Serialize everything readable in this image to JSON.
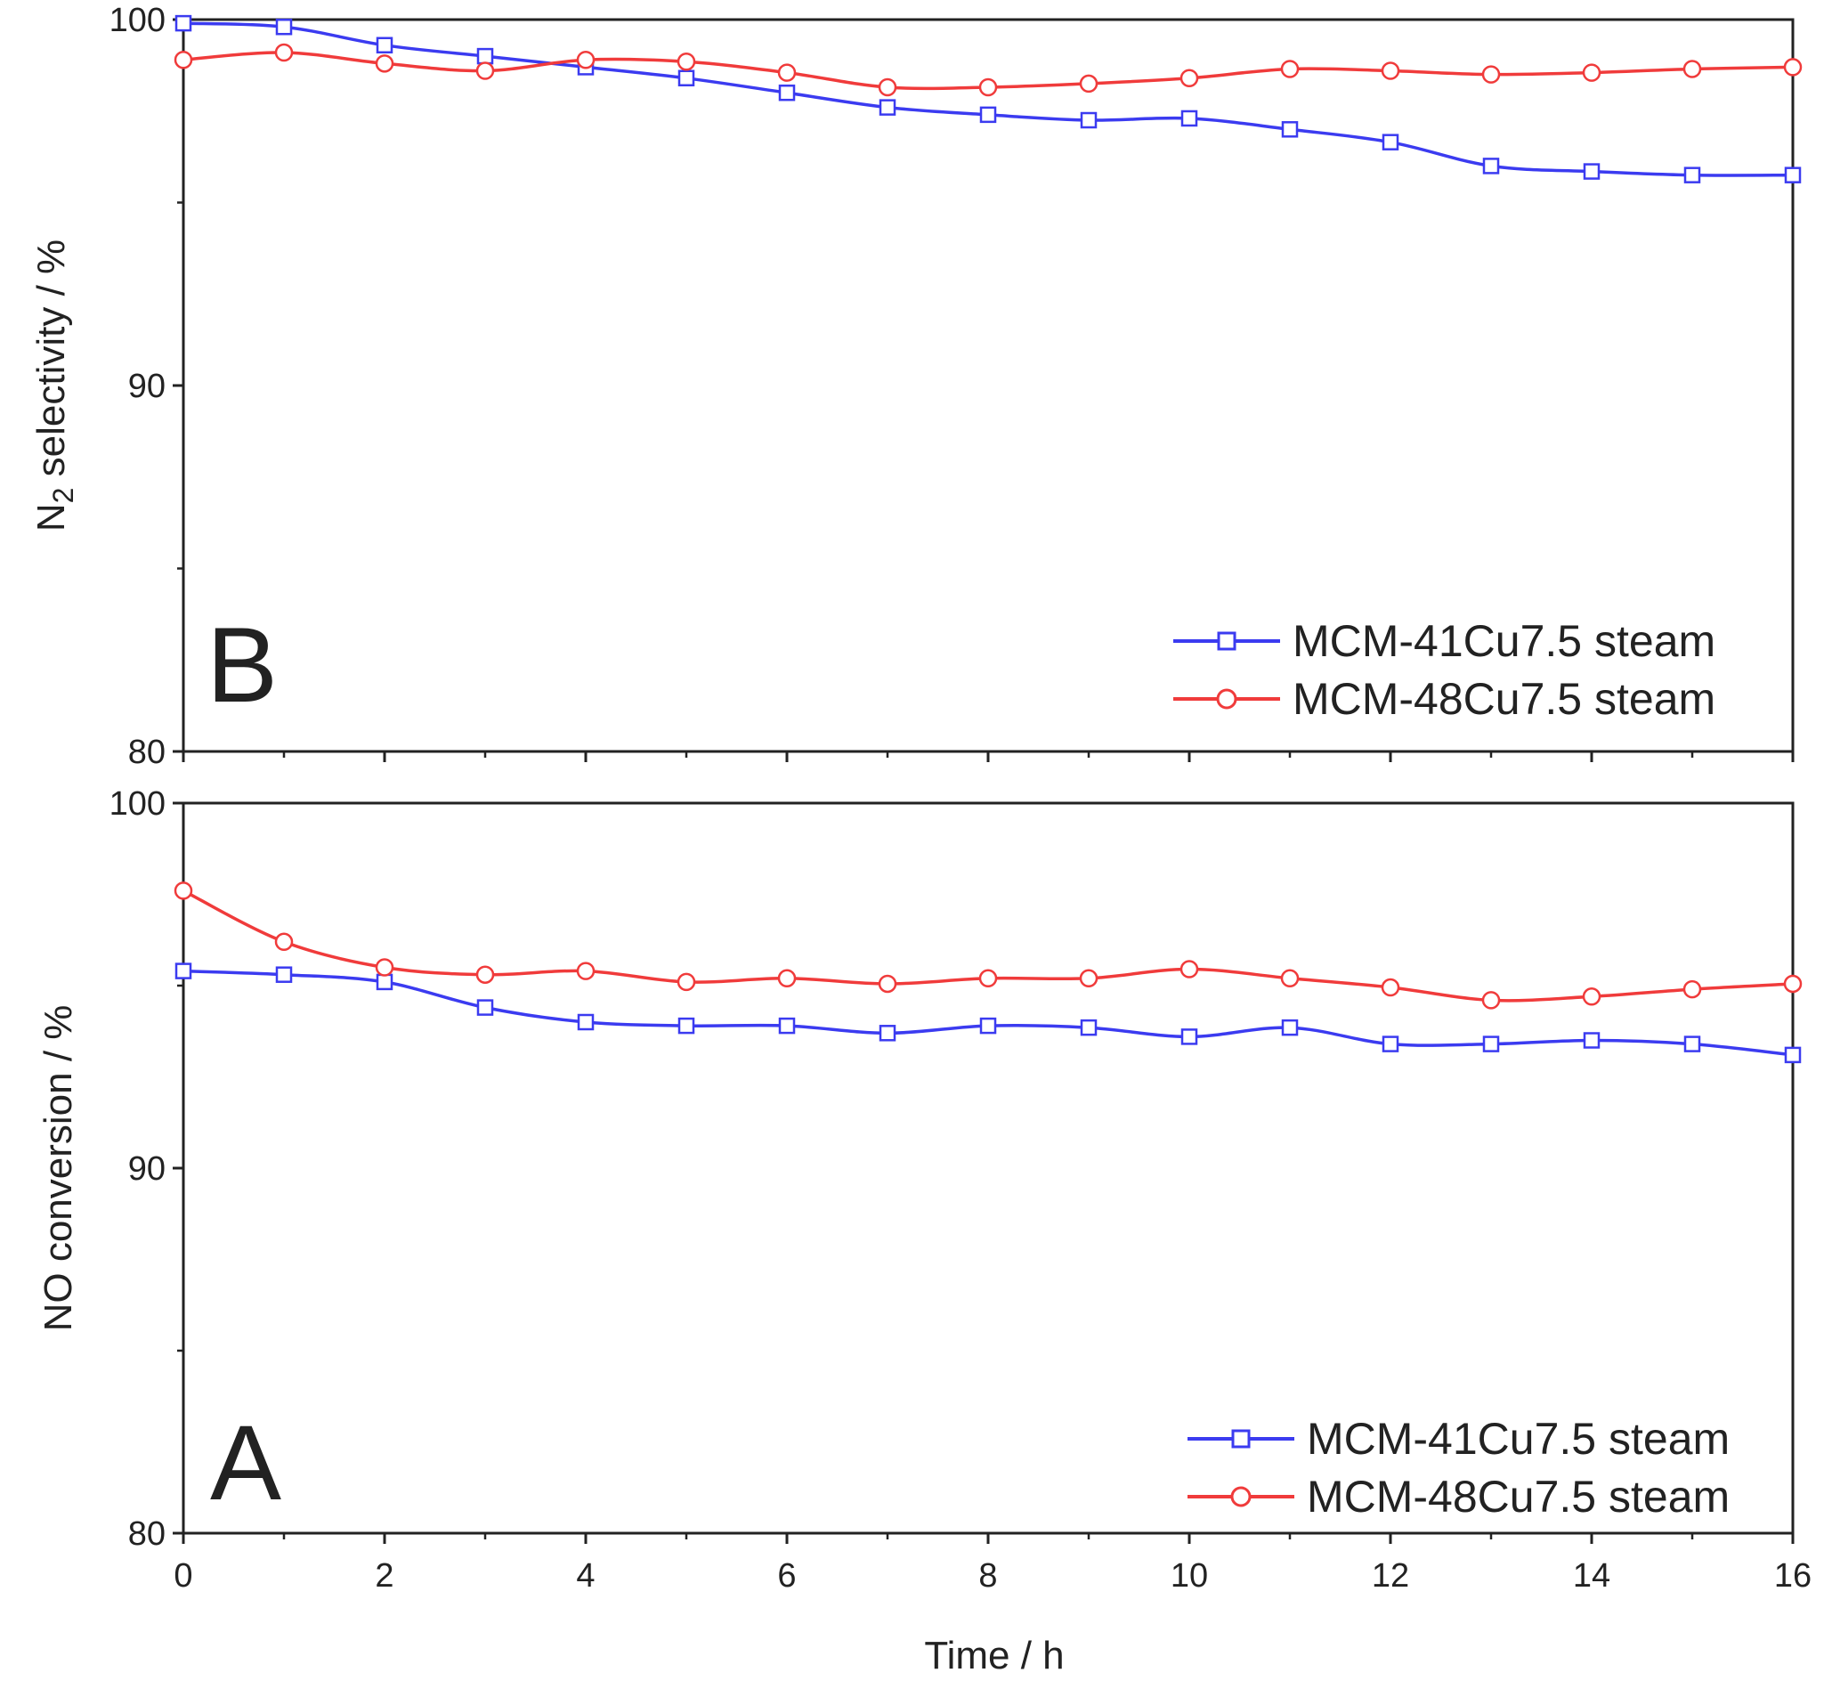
{
  "chart_data": [
    {
      "type": "line",
      "panel_label": "B",
      "ylabel_main": "N",
      "ylabel_sub": "2",
      "ylabel_rest": " selectivity / %",
      "ylim": [
        80,
        100
      ],
      "yticks": [
        "80",
        "90",
        "100"
      ],
      "xlim": [
        0,
        16
      ],
      "legend_position": "lower-right",
      "x": [
        0,
        1,
        2,
        3,
        4,
        5,
        6,
        7,
        8,
        9,
        10,
        11,
        12,
        13,
        14,
        15,
        16
      ],
      "series": [
        {
          "name": "MCM-41Cu7.5 steam",
          "color": "#3b3bf0",
          "marker": "square",
          "values": [
            99.9,
            99.8,
            99.3,
            99.0,
            98.7,
            98.4,
            98.0,
            97.6,
            97.4,
            97.25,
            97.3,
            97.0,
            96.65,
            96.0,
            95.85,
            95.75,
            95.75
          ]
        },
        {
          "name": "MCM-48Cu7.5 steam",
          "color": "#f03b3b",
          "marker": "circle",
          "values": [
            98.9,
            99.1,
            98.8,
            98.6,
            98.9,
            98.85,
            98.55,
            98.15,
            98.15,
            98.25,
            98.4,
            98.65,
            98.6,
            98.5,
            98.55,
            98.65,
            98.7
          ]
        }
      ]
    },
    {
      "type": "line",
      "panel_label": "A",
      "ylabel": "NO conversion / %",
      "xlabel": "Time / h",
      "ylim": [
        80,
        100
      ],
      "yticks": [
        "80",
        "90",
        "100"
      ],
      "xlim": [
        0,
        16
      ],
      "xticks": [
        "0",
        "2",
        "4",
        "6",
        "8",
        "10",
        "12",
        "14",
        "16"
      ],
      "legend_position": "lower-right",
      "x": [
        0,
        1,
        2,
        3,
        4,
        5,
        6,
        7,
        8,
        9,
        10,
        11,
        12,
        13,
        14,
        15,
        16
      ],
      "series": [
        {
          "name": "MCM-41Cu7.5 steam",
          "color": "#3b3bf0",
          "marker": "square",
          "values": [
            95.4,
            95.3,
            95.1,
            94.4,
            94.0,
            93.9,
            93.9,
            93.7,
            93.9,
            93.85,
            93.6,
            93.85,
            93.4,
            93.4,
            93.5,
            93.4,
            93.1
          ]
        },
        {
          "name": "MCM-48Cu7.5 steam",
          "color": "#f03b3b",
          "marker": "circle",
          "values": [
            97.6,
            96.2,
            95.5,
            95.3,
            95.4,
            95.1,
            95.2,
            95.05,
            95.2,
            95.2,
            95.45,
            95.2,
            94.95,
            94.6,
            94.7,
            94.9,
            95.05
          ]
        }
      ]
    }
  ]
}
